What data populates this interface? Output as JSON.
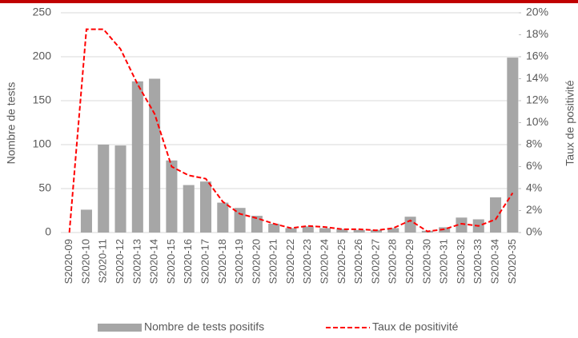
{
  "chart_data": {
    "type": "combo",
    "y_label": "Nombre de tests",
    "y2_label": "Taux de positivité",
    "categories": [
      "S2020-09",
      "S2020-10",
      "S2020-11",
      "S2020-12",
      "S2020-13",
      "S2020-14",
      "S2020-15",
      "S2020-16",
      "S2020-17",
      "S2020-18",
      "S2020-19",
      "S2020-20",
      "S2020-21",
      "S2020-22",
      "S2020-23",
      "S2020-24",
      "S2020-25",
      "S2020-26",
      "S2020-27",
      "S2020-28",
      "S2020-29",
      "S2020-30",
      "S2020-31",
      "S2020-32",
      "S2020-33",
      "S2020-34",
      "S2020-35"
    ],
    "series": [
      {
        "name": "Nombre de tests positifs",
        "type": "bar",
        "color": "#a6a6a6",
        "values": [
          0,
          26,
          100,
          99,
          172,
          175,
          82,
          54,
          58,
          34,
          28,
          19,
          10,
          5,
          7,
          5,
          4,
          3,
          3,
          5,
          18,
          2,
          6,
          17,
          15,
          40,
          199
        ]
      },
      {
        "name": "Taux de positivité",
        "type": "line",
        "axis": "y2",
        "color": "#ff0000",
        "dashed": true,
        "values": [
          0,
          18.5,
          18.5,
          16.7,
          13.5,
          10.8,
          6.0,
          5.2,
          4.9,
          2.8,
          1.7,
          1.3,
          0.8,
          0.4,
          0.6,
          0.5,
          0.3,
          0.3,
          0.2,
          0.4,
          1.1,
          0.1,
          0.3,
          0.8,
          0.6,
          1.2,
          3.6
        ]
      }
    ],
    "ylim": [
      0,
      250
    ],
    "yticks": [
      0,
      50,
      100,
      150,
      200,
      250
    ],
    "y2lim": [
      0,
      20
    ],
    "y2ticks": [
      {
        "value": 0,
        "label": "0%"
      },
      {
        "value": 2,
        "label": "2%"
      },
      {
        "value": 4,
        "label": "4%"
      },
      {
        "value": 6,
        "label": "6%"
      },
      {
        "value": 8,
        "label": "8%"
      },
      {
        "value": 10,
        "label": "10%"
      },
      {
        "value": 12,
        "label": "12%"
      },
      {
        "value": 14,
        "label": "14%"
      },
      {
        "value": 16,
        "label": "16%"
      },
      {
        "value": 18,
        "label": "18%"
      },
      {
        "value": 20,
        "label": "20%"
      }
    ],
    "grid": true,
    "legend": "bottom"
  }
}
